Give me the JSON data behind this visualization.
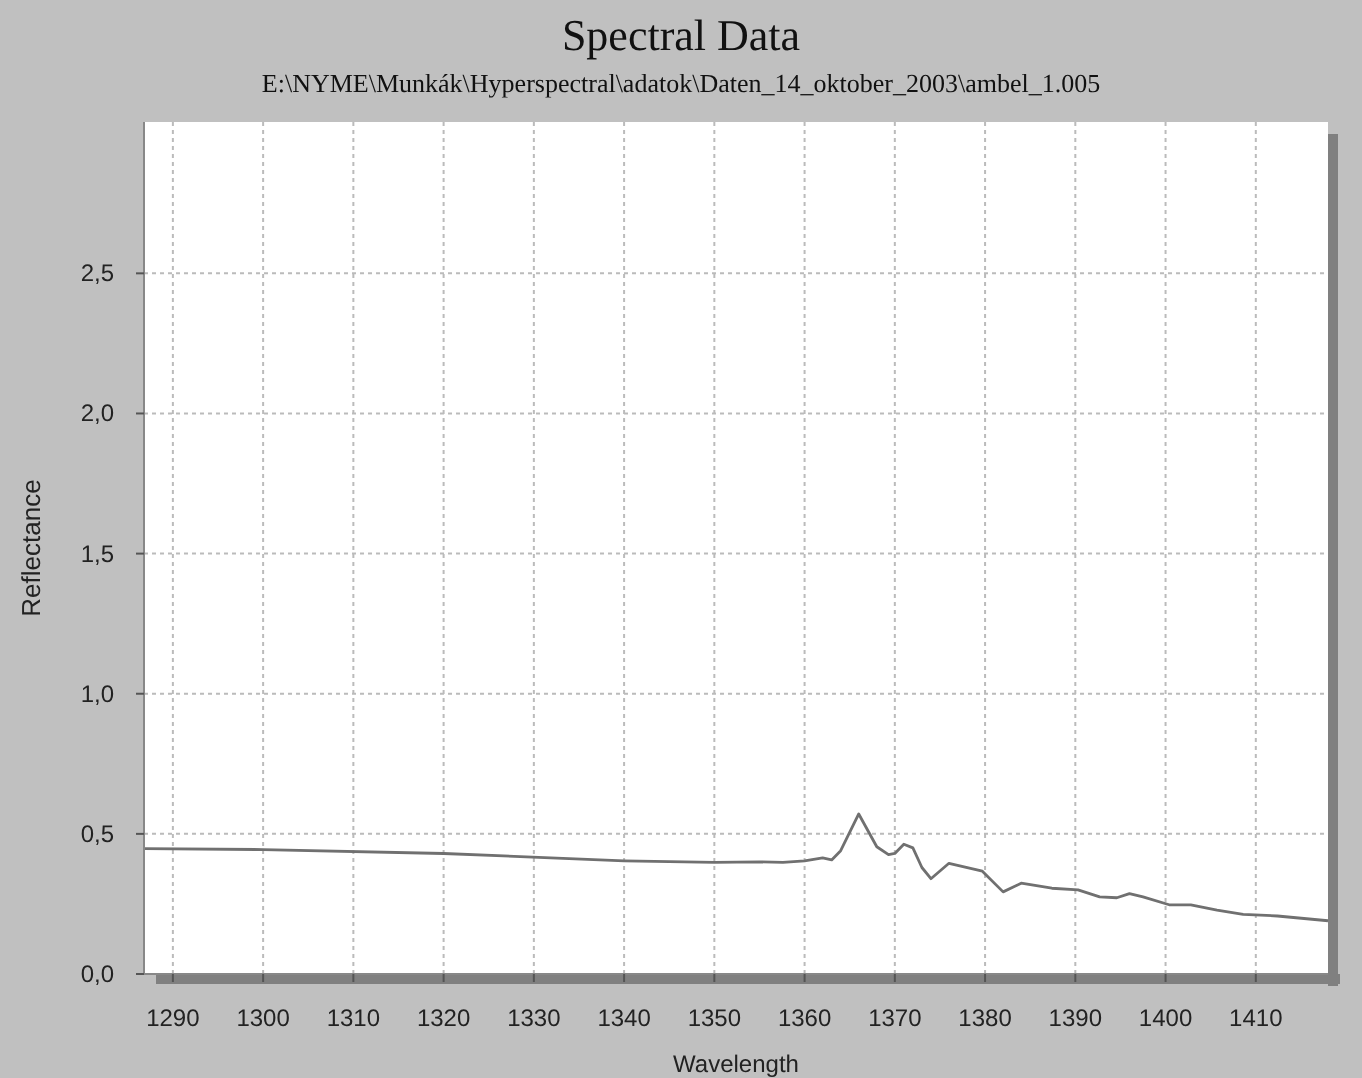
{
  "chart_data": {
    "type": "line",
    "title": "Spectral Data",
    "subtitle": "E:\\NYME\\Munkák\\Hyperspectral\\adatok\\Daten_14_oktober_2003\\ambel_1.005",
    "xlabel": "Wavelength",
    "ylabel": "Reflectance",
    "x": [
      1286.8,
      1300,
      1320,
      1340,
      1350,
      1355,
      1357.6,
      1360,
      1362,
      1363,
      1364,
      1366,
      1368,
      1369.3,
      1370,
      1371,
      1372,
      1373,
      1374,
      1376,
      1379.7,
      1382,
      1384,
      1387.4,
      1390.3,
      1392.7,
      1394.6,
      1396,
      1397.5,
      1400.4,
      1402.8,
      1405.7,
      1408.6,
      1412.4,
      1418
    ],
    "series": [
      {
        "color": "#707070",
        "values": [
          0.447,
          0.444,
          0.43,
          0.404,
          0.398,
          0.4,
          0.398,
          0.404,
          0.414,
          0.407,
          0.44,
          0.571,
          0.454,
          0.426,
          0.43,
          0.463,
          0.45,
          0.38,
          0.34,
          0.395,
          0.367,
          0.293,
          0.324,
          0.306,
          0.3,
          0.275,
          0.272,
          0.287,
          0.275,
          0.247,
          0.247,
          0.228,
          0.213,
          0.207,
          0.19
        ]
      }
    ],
    "xlim": [
      1286.8,
      1418
    ],
    "ylim": [
      0,
      3.04
    ],
    "xticks": [
      1290,
      1300,
      1310,
      1320,
      1330,
      1340,
      1350,
      1360,
      1370,
      1380,
      1390,
      1400,
      1410
    ],
    "yticks": [
      {
        "value": 0,
        "label": "0,0"
      },
      {
        "value": 0.5,
        "label": "0,5"
      },
      {
        "value": 1,
        "label": "1,0"
      },
      {
        "value": 1.5,
        "label": "1,5"
      },
      {
        "value": 2,
        "label": "2,0"
      },
      {
        "value": 2.5,
        "label": "2,5"
      }
    ],
    "grid": true,
    "line_style": "solid",
    "marker": "none"
  }
}
